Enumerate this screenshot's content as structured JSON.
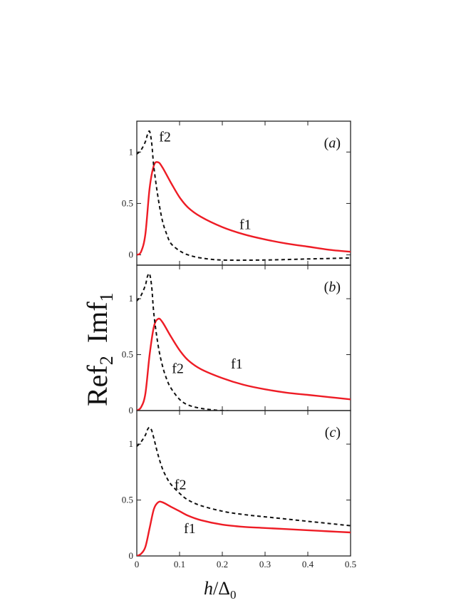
{
  "colors": {
    "f1": "#ee1c25",
    "f2": "#111111",
    "axis": "#222222"
  },
  "figure": {
    "ylabel": {
      "a": "Ref",
      "a_sub": "2",
      "b": "Imf",
      "b_sub": "1"
    },
    "xlabel": {
      "h": "h",
      "slash": "/",
      "delta": "Δ",
      "sub": "0"
    }
  },
  "chart_data": [
    {
      "type": "line",
      "panel": "(a)",
      "xlim": [
        0,
        0.5
      ],
      "ylim": [
        -0.1,
        1.3
      ],
      "x_ticks": [
        0,
        0.1,
        0.2,
        0.3,
        0.4,
        0.5
      ],
      "y_ticks": [
        0,
        0.5,
        1
      ],
      "y_tick_labels": [
        "0",
        "0.5",
        "1"
      ],
      "series": [
        {
          "name": "f1",
          "style": "solid",
          "x": [
            0,
            0.01,
            0.02,
            0.03,
            0.04,
            0.05,
            0.06,
            0.08,
            0.1,
            0.12,
            0.15,
            0.2,
            0.25,
            0.3,
            0.35,
            0.4,
            0.45,
            0.5
          ],
          "y": [
            0,
            0.03,
            0.2,
            0.65,
            0.87,
            0.9,
            0.85,
            0.7,
            0.56,
            0.46,
            0.37,
            0.27,
            0.2,
            0.15,
            0.11,
            0.08,
            0.05,
            0.03
          ]
        },
        {
          "name": "f2",
          "style": "dashed",
          "x": [
            0,
            0.01,
            0.02,
            0.025,
            0.03,
            0.035,
            0.04,
            0.05,
            0.06,
            0.07,
            0.08,
            0.1,
            0.12,
            0.15,
            0.2,
            0.3,
            0.4,
            0.5
          ],
          "y": [
            0.98,
            1.02,
            1.1,
            1.17,
            1.2,
            1.08,
            0.85,
            0.55,
            0.33,
            0.2,
            0.11,
            0.04,
            0.0,
            -0.03,
            -0.05,
            -0.05,
            -0.04,
            -0.03
          ]
        }
      ],
      "curve_labels": [
        {
          "text": "f2",
          "x": 0.052,
          "y": 1.15
        },
        {
          "text": "f1",
          "x": 0.24,
          "y": 0.3
        }
      ]
    },
    {
      "type": "line",
      "panel": "(b)",
      "xlim": [
        0,
        0.5
      ],
      "ylim": [
        0,
        1.3
      ],
      "x_ticks": [
        0,
        0.1,
        0.2,
        0.3,
        0.4,
        0.5
      ],
      "y_ticks": [
        0,
        0.5,
        1
      ],
      "y_tick_labels": [
        "0",
        "0.5",
        "1"
      ],
      "series": [
        {
          "name": "f1",
          "style": "solid",
          "x": [
            0,
            0.01,
            0.02,
            0.03,
            0.04,
            0.05,
            0.06,
            0.08,
            0.1,
            0.12,
            0.15,
            0.2,
            0.25,
            0.3,
            0.35,
            0.4,
            0.45,
            0.5
          ],
          "y": [
            0,
            0.03,
            0.15,
            0.5,
            0.75,
            0.82,
            0.79,
            0.66,
            0.54,
            0.45,
            0.37,
            0.29,
            0.23,
            0.19,
            0.16,
            0.14,
            0.12,
            0.1
          ]
        },
        {
          "name": "f2",
          "style": "dashed",
          "x": [
            0,
            0.01,
            0.02,
            0.025,
            0.03,
            0.035,
            0.04,
            0.05,
            0.06,
            0.07,
            0.08,
            0.1,
            0.12,
            0.15,
            0.2,
            0.3,
            0.4,
            0.5
          ],
          "y": [
            0.98,
            1.03,
            1.12,
            1.2,
            1.22,
            1.1,
            0.86,
            0.58,
            0.4,
            0.28,
            0.2,
            0.1,
            0.05,
            0.02,
            0.0,
            -0.01,
            -0.01,
            -0.01
          ]
        }
      ],
      "curve_labels": [
        {
          "text": "f2",
          "x": 0.082,
          "y": 0.38
        },
        {
          "text": "f1",
          "x": 0.22,
          "y": 0.42
        }
      ]
    },
    {
      "type": "line",
      "panel": "(c)",
      "xlim": [
        0,
        0.5
      ],
      "ylim": [
        0,
        1.3
      ],
      "x_ticks": [
        0,
        0.1,
        0.2,
        0.3,
        0.4,
        0.5
      ],
      "x_tick_labels": [
        "0",
        "0.1",
        "0.2",
        "0.3",
        "0.4",
        "0.5"
      ],
      "y_ticks": [
        0,
        0.5,
        1
      ],
      "y_tick_labels": [
        "0",
        "0.5",
        "1"
      ],
      "series": [
        {
          "name": "f1",
          "style": "solid",
          "x": [
            0,
            0.01,
            0.02,
            0.03,
            0.04,
            0.05,
            0.06,
            0.08,
            0.1,
            0.12,
            0.15,
            0.2,
            0.25,
            0.3,
            0.35,
            0.4,
            0.45,
            0.5
          ],
          "y": [
            0,
            0.02,
            0.08,
            0.25,
            0.42,
            0.48,
            0.48,
            0.44,
            0.4,
            0.36,
            0.32,
            0.28,
            0.26,
            0.25,
            0.24,
            0.23,
            0.22,
            0.21
          ]
        },
        {
          "name": "f2",
          "style": "dashed",
          "x": [
            0,
            0.01,
            0.02,
            0.025,
            0.03,
            0.035,
            0.04,
            0.05,
            0.06,
            0.07,
            0.08,
            0.1,
            0.12,
            0.15,
            0.2,
            0.25,
            0.3,
            0.4,
            0.5
          ],
          "y": [
            0.98,
            1.02,
            1.08,
            1.13,
            1.15,
            1.12,
            1.05,
            0.9,
            0.78,
            0.7,
            0.64,
            0.56,
            0.5,
            0.45,
            0.4,
            0.37,
            0.35,
            0.31,
            0.27
          ]
        }
      ],
      "curve_labels": [
        {
          "text": "f2",
          "x": 0.088,
          "y": 0.64
        },
        {
          "text": "f1",
          "x": 0.11,
          "y": 0.25
        }
      ]
    }
  ]
}
